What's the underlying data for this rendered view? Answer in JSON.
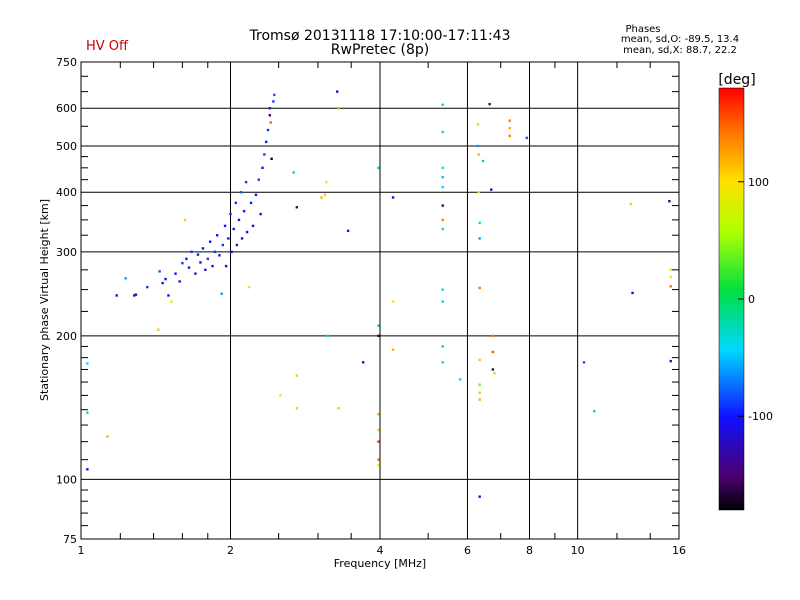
{
  "status": {
    "hv_label": "HV Off",
    "hv_color": "#cc0000"
  },
  "header": {
    "title_line1": "Tromsø 20131118 17:10:00-17:11:43",
    "title_line2": "RwPretec (8p)"
  },
  "phases_box": {
    "heading": "Phases",
    "line_o": "mean, sd,O: -89.5, 13.4",
    "line_x": "mean, sd,X:  88.7, 22.2"
  },
  "colorbar": {
    "unit_label": "[deg]",
    "ticks": [
      {
        "value": 100,
        "label": "100"
      },
      {
        "value": 0,
        "label": "0"
      },
      {
        "value": -100,
        "label": "-100"
      }
    ],
    "range": [
      -180,
      180
    ]
  },
  "chart_data": {
    "type": "scatter",
    "title": "Tromsø 20131118 17:10:00-17:11:43",
    "subtitle": "RwPretec (8p)",
    "xlabel": "Frequency [MHz]",
    "ylabel": "Stationary phase Virtual Height [km]",
    "x_scale": "log",
    "y_scale": "log",
    "xlim": [
      1,
      16
    ],
    "ylim": [
      75,
      750
    ],
    "grid": true,
    "x_ticks": [
      {
        "value": 1,
        "label": "1"
      },
      {
        "value": 2,
        "label": "2"
      },
      {
        "value": 4,
        "label": "4"
      },
      {
        "value": 6,
        "label": "6"
      },
      {
        "value": 8,
        "label": "8"
      },
      {
        "value": 10,
        "label": "10"
      },
      {
        "value": 16,
        "label": "16"
      }
    ],
    "y_ticks": [
      {
        "value": 75,
        "label": "75"
      },
      {
        "value": 100,
        "label": "100"
      },
      {
        "value": 200,
        "label": "200"
      },
      {
        "value": 300,
        "label": "300"
      },
      {
        "value": 400,
        "label": "400"
      },
      {
        "value": 500,
        "label": "500"
      },
      {
        "value": 600,
        "label": "600"
      },
      {
        "value": 750,
        "label": "750"
      }
    ],
    "x_grid_lines": [
      1,
      2,
      4,
      6,
      8,
      10,
      16
    ],
    "y_grid_lines": [
      100,
      200,
      300,
      400,
      500,
      600
    ],
    "color_scale": "phase in degrees, rainbow from -180 (black) to 180 (red)",
    "points": [
      {
        "x": 1.03,
        "y": 105,
        "phase": -110
      },
      {
        "x": 1.03,
        "y": 138,
        "phase": -20
      },
      {
        "x": 1.03,
        "y": 175,
        "phase": -40
      },
      {
        "x": 1.13,
        "y": 123,
        "phase": 120
      },
      {
        "x": 1.18,
        "y": 243,
        "phase": -120
      },
      {
        "x": 1.23,
        "y": 264,
        "phase": -60
      },
      {
        "x": 1.28,
        "y": 243,
        "phase": -130
      },
      {
        "x": 1.29,
        "y": 244,
        "phase": -140
      },
      {
        "x": 1.36,
        "y": 253,
        "phase": -90
      },
      {
        "x": 1.43,
        "y": 206,
        "phase": 110
      },
      {
        "x": 1.44,
        "y": 273,
        "phase": -80
      },
      {
        "x": 1.46,
        "y": 258,
        "phase": -100
      },
      {
        "x": 1.48,
        "y": 263,
        "phase": -110
      },
      {
        "x": 1.5,
        "y": 243,
        "phase": -120
      },
      {
        "x": 1.52,
        "y": 236,
        "phase": 80
      },
      {
        "x": 1.55,
        "y": 270,
        "phase": -100
      },
      {
        "x": 1.58,
        "y": 260,
        "phase": -110
      },
      {
        "x": 1.6,
        "y": 284,
        "phase": -90
      },
      {
        "x": 1.62,
        "y": 350,
        "phase": 110
      },
      {
        "x": 1.63,
        "y": 290,
        "phase": -100
      },
      {
        "x": 1.65,
        "y": 278,
        "phase": -110
      },
      {
        "x": 1.67,
        "y": 300,
        "phase": -90
      },
      {
        "x": 1.7,
        "y": 270,
        "phase": -120
      },
      {
        "x": 1.72,
        "y": 296,
        "phase": -100
      },
      {
        "x": 1.74,
        "y": 285,
        "phase": -110
      },
      {
        "x": 1.76,
        "y": 305,
        "phase": -100
      },
      {
        "x": 1.78,
        "y": 275,
        "phase": -110
      },
      {
        "x": 1.8,
        "y": 290,
        "phase": -90
      },
      {
        "x": 1.82,
        "y": 315,
        "phase": -100
      },
      {
        "x": 1.84,
        "y": 280,
        "phase": -110
      },
      {
        "x": 1.86,
        "y": 300,
        "phase": -90
      },
      {
        "x": 1.88,
        "y": 325,
        "phase": -100
      },
      {
        "x": 1.9,
        "y": 295,
        "phase": -110
      },
      {
        "x": 1.92,
        "y": 245,
        "phase": -60
      },
      {
        "x": 1.93,
        "y": 310,
        "phase": -90
      },
      {
        "x": 1.95,
        "y": 340,
        "phase": -100
      },
      {
        "x": 1.96,
        "y": 280,
        "phase": -120
      },
      {
        "x": 1.98,
        "y": 320,
        "phase": -100
      },
      {
        "x": 2.0,
        "y": 360,
        "phase": -90
      },
      {
        "x": 2.01,
        "y": 300,
        "phase": -110
      },
      {
        "x": 2.03,
        "y": 335,
        "phase": -100
      },
      {
        "x": 2.05,
        "y": 380,
        "phase": -90
      },
      {
        "x": 2.06,
        "y": 310,
        "phase": -110
      },
      {
        "x": 2.08,
        "y": 350,
        "phase": -100
      },
      {
        "x": 2.1,
        "y": 400,
        "phase": -80
      },
      {
        "x": 2.11,
        "y": 320,
        "phase": -110
      },
      {
        "x": 2.13,
        "y": 365,
        "phase": -100
      },
      {
        "x": 2.15,
        "y": 420,
        "phase": -90
      },
      {
        "x": 2.16,
        "y": 330,
        "phase": -110
      },
      {
        "x": 2.18,
        "y": 253,
        "phase": 100
      },
      {
        "x": 2.2,
        "y": 380,
        "phase": -100
      },
      {
        "x": 2.22,
        "y": 340,
        "phase": -110
      },
      {
        "x": 2.25,
        "y": 395,
        "phase": -100
      },
      {
        "x": 2.28,
        "y": 425,
        "phase": -90
      },
      {
        "x": 2.3,
        "y": 360,
        "phase": -110
      },
      {
        "x": 2.32,
        "y": 450,
        "phase": -100
      },
      {
        "x": 2.34,
        "y": 480,
        "phase": -90
      },
      {
        "x": 2.36,
        "y": 510,
        "phase": -100
      },
      {
        "x": 2.38,
        "y": 540,
        "phase": -90
      },
      {
        "x": 2.4,
        "y": 600,
        "phase": -100
      },
      {
        "x": 2.4,
        "y": 580,
        "phase": -160
      },
      {
        "x": 2.41,
        "y": 560,
        "phase": 150
      },
      {
        "x": 2.42,
        "y": 470,
        "phase": -170
      },
      {
        "x": 2.44,
        "y": 620,
        "phase": -90
      },
      {
        "x": 2.45,
        "y": 640,
        "phase": -80
      },
      {
        "x": 2.52,
        "y": 150,
        "phase": 100
      },
      {
        "x": 2.68,
        "y": 440,
        "phase": -20
      },
      {
        "x": 2.72,
        "y": 372,
        "phase": -150
      },
      {
        "x": 2.72,
        "y": 165,
        "phase": 110
      },
      {
        "x": 2.72,
        "y": 141,
        "phase": 110
      },
      {
        "x": 3.05,
        "y": 390,
        "phase": 120
      },
      {
        "x": 3.1,
        "y": 395,
        "phase": 110
      },
      {
        "x": 3.12,
        "y": 420,
        "phase": 100
      },
      {
        "x": 3.14,
        "y": 200,
        "phase": -30
      },
      {
        "x": 3.28,
        "y": 650,
        "phase": -110
      },
      {
        "x": 3.3,
        "y": 600,
        "phase": 120
      },
      {
        "x": 3.3,
        "y": 141,
        "phase": 110
      },
      {
        "x": 3.45,
        "y": 332,
        "phase": -110
      },
      {
        "x": 3.7,
        "y": 176,
        "phase": -120
      },
      {
        "x": 3.97,
        "y": 210,
        "phase": -20
      },
      {
        "x": 3.97,
        "y": 200,
        "phase": -150
      },
      {
        "x": 3.97,
        "y": 450,
        "phase": -30
      },
      {
        "x": 3.97,
        "y": 137,
        "phase": 120
      },
      {
        "x": 3.97,
        "y": 127,
        "phase": 110
      },
      {
        "x": 3.97,
        "y": 120,
        "phase": 160
      },
      {
        "x": 3.97,
        "y": 110,
        "phase": 140
      },
      {
        "x": 3.97,
        "y": 107,
        "phase": 100
      },
      {
        "x": 4.25,
        "y": 390,
        "phase": -110
      },
      {
        "x": 4.25,
        "y": 236,
        "phase": 100
      },
      {
        "x": 4.25,
        "y": 187,
        "phase": 120
      },
      {
        "x": 5.35,
        "y": 610,
        "phase": -30
      },
      {
        "x": 5.35,
        "y": 535,
        "phase": -40
      },
      {
        "x": 5.35,
        "y": 450,
        "phase": -40
      },
      {
        "x": 5.35,
        "y": 430,
        "phase": -50
      },
      {
        "x": 5.35,
        "y": 410,
        "phase": -40
      },
      {
        "x": 5.35,
        "y": 375,
        "phase": -150
      },
      {
        "x": 5.35,
        "y": 350,
        "phase": 140
      },
      {
        "x": 5.35,
        "y": 335,
        "phase": -20
      },
      {
        "x": 5.35,
        "y": 250,
        "phase": -40
      },
      {
        "x": 5.35,
        "y": 236,
        "phase": -30
      },
      {
        "x": 5.35,
        "y": 190,
        "phase": -20
      },
      {
        "x": 5.35,
        "y": 176,
        "phase": -40
      },
      {
        "x": 5.8,
        "y": 162,
        "phase": -40
      },
      {
        "x": 6.3,
        "y": 555,
        "phase": 110
      },
      {
        "x": 6.3,
        "y": 500,
        "phase": -60
      },
      {
        "x": 6.32,
        "y": 480,
        "phase": 120
      },
      {
        "x": 6.32,
        "y": 400,
        "phase": 90
      },
      {
        "x": 6.35,
        "y": 345,
        "phase": -40
      },
      {
        "x": 6.35,
        "y": 320,
        "phase": -60
      },
      {
        "x": 6.35,
        "y": 252,
        "phase": 140
      },
      {
        "x": 6.35,
        "y": 178,
        "phase": 110
      },
      {
        "x": 6.35,
        "y": 158,
        "phase": 40
      },
      {
        "x": 6.35,
        "y": 152,
        "phase": 110
      },
      {
        "x": 6.35,
        "y": 147,
        "phase": 120
      },
      {
        "x": 6.35,
        "y": 92,
        "phase": -110
      },
      {
        "x": 6.45,
        "y": 465,
        "phase": -20
      },
      {
        "x": 6.65,
        "y": 612,
        "phase": -150
      },
      {
        "x": 6.7,
        "y": 405,
        "phase": -130
      },
      {
        "x": 6.75,
        "y": 200,
        "phase": 140
      },
      {
        "x": 6.75,
        "y": 185,
        "phase": 150
      },
      {
        "x": 6.75,
        "y": 170,
        "phase": -150
      },
      {
        "x": 6.8,
        "y": 167,
        "phase": 50
      },
      {
        "x": 7.3,
        "y": 565,
        "phase": 140
      },
      {
        "x": 7.3,
        "y": 545,
        "phase": 120
      },
      {
        "x": 7.3,
        "y": 525,
        "phase": 140
      },
      {
        "x": 7.9,
        "y": 520,
        "phase": -80
      },
      {
        "x": 10.3,
        "y": 176,
        "phase": -80
      },
      {
        "x": 10.8,
        "y": 139,
        "phase": -20
      },
      {
        "x": 12.8,
        "y": 378,
        "phase": 110
      },
      {
        "x": 12.9,
        "y": 246,
        "phase": -110
      },
      {
        "x": 15.3,
        "y": 383,
        "phase": -150
      },
      {
        "x": 15.4,
        "y": 275,
        "phase": 80
      },
      {
        "x": 15.4,
        "y": 266,
        "phase": 100
      },
      {
        "x": 15.4,
        "y": 254,
        "phase": 140
      },
      {
        "x": 15.4,
        "y": 177,
        "phase": -110
      }
    ]
  }
}
